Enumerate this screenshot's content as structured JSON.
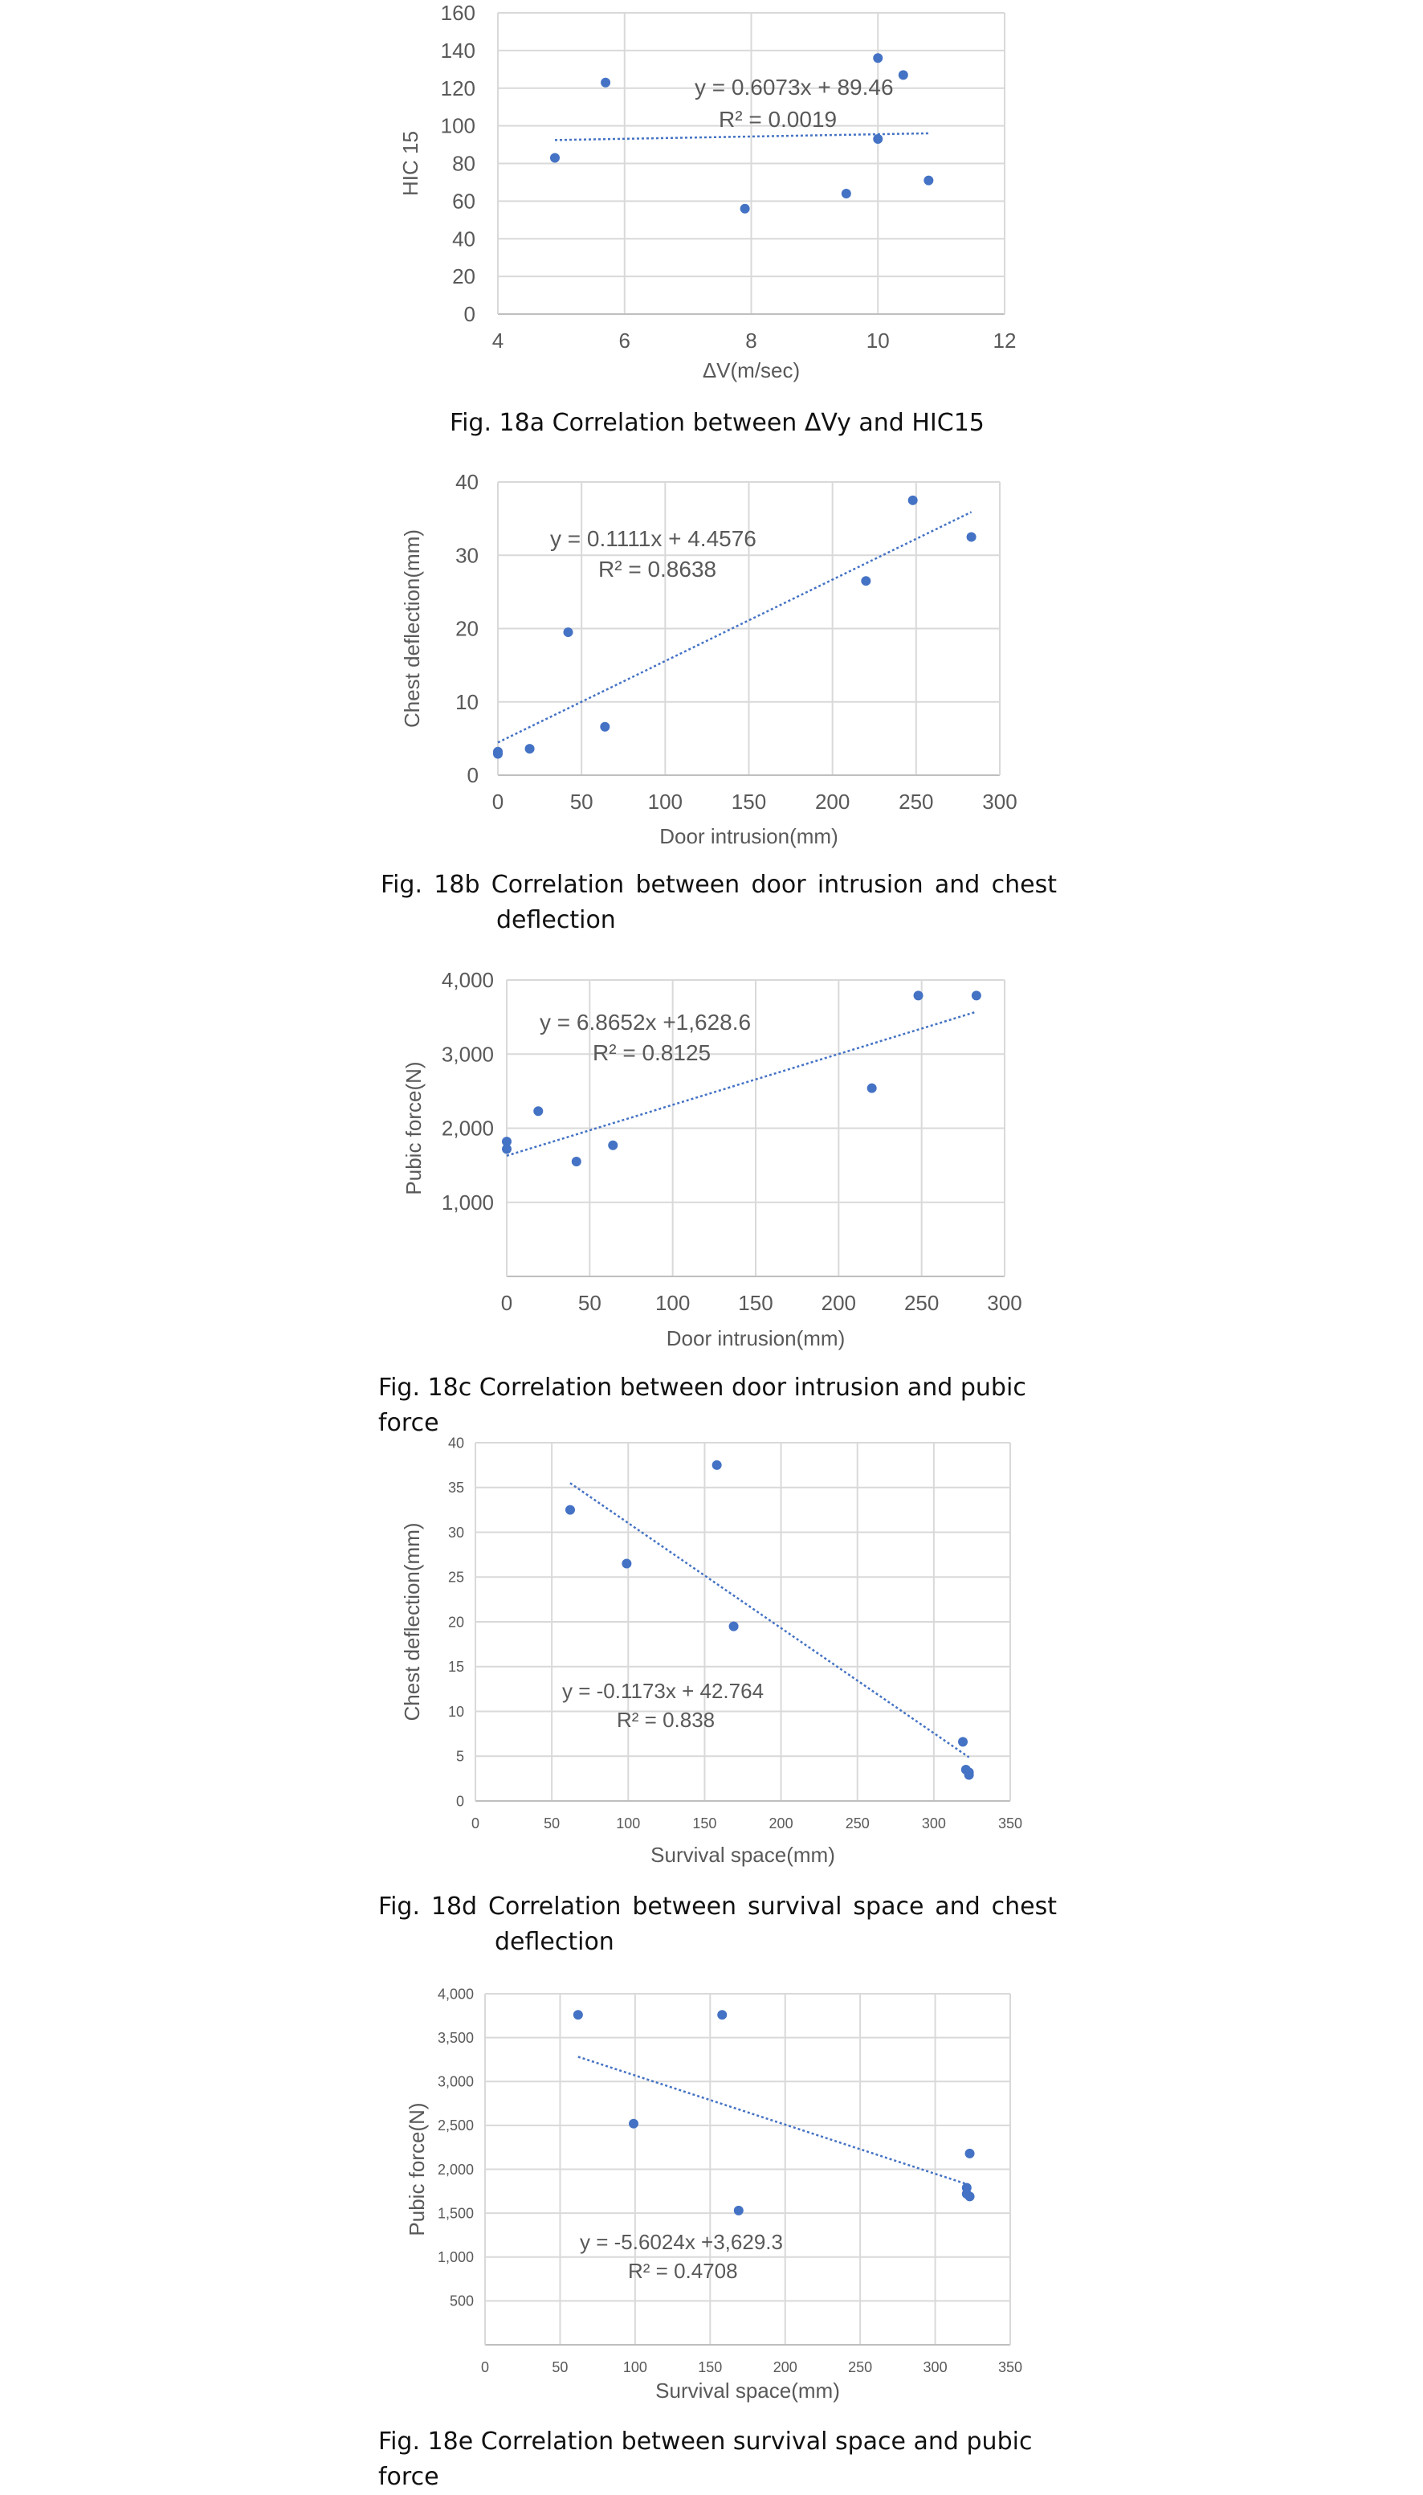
{
  "figures": [
    {
      "id": "18a",
      "caption_main": "Fig. 18a Correlation between ΔVy and HIC15",
      "caption_cont": "",
      "chart_data": {
        "type": "scatter",
        "xlabel": "ΔV(m/sec)",
        "ylabel": "HIC 15",
        "xlim": [
          4,
          12
        ],
        "ylim": [
          0,
          160
        ],
        "xticks": [
          4,
          6,
          8,
          10,
          12
        ],
        "yticks": [
          0,
          20,
          40,
          60,
          80,
          100,
          120,
          140,
          160
        ],
        "tick_labels_x": [
          "4",
          "6",
          "8",
          "10",
          "12"
        ],
        "tick_labels_y": [
          "0",
          "20",
          "40",
          "60",
          "80",
          "100",
          "120",
          "140",
          "160"
        ],
        "grid": "horizontal",
        "points": [
          [
            4.9,
            83
          ],
          [
            5.7,
            123
          ],
          [
            7.9,
            56
          ],
          [
            9.5,
            64
          ],
          [
            10.0,
            136
          ],
          [
            10.0,
            93
          ],
          [
            10.4,
            127
          ],
          [
            10.8,
            71
          ]
        ],
        "trendline": {
          "slope": 0.6073,
          "intercept": 89.46,
          "x_range": [
            4.9,
            10.8
          ]
        },
        "equation": "y = 0.6073x + 89.46",
        "r2": "R² = 0.0019",
        "color": "#4472C4"
      }
    },
    {
      "id": "18b",
      "caption_main": "Fig. 18b Correlation between door intrusion and chest",
      "caption_cont": "deflection",
      "chart_data": {
        "type": "scatter",
        "xlabel": "Door intrusion(mm)",
        "ylabel": "Chest deflection(mm)",
        "xlim": [
          0,
          300
        ],
        "ylim": [
          0,
          40
        ],
        "xticks": [
          0,
          50,
          100,
          150,
          200,
          250,
          300
        ],
        "yticks": [
          0,
          10,
          20,
          30,
          40
        ],
        "tick_labels_x": [
          "0",
          "50",
          "100",
          "150",
          "200",
          "250",
          "300"
        ],
        "tick_labels_y": [
          "0",
          "10",
          "20",
          "30",
          "40"
        ],
        "grid": "both",
        "points": [
          [
            0,
            3.2
          ],
          [
            0,
            2.9
          ],
          [
            19,
            3.6
          ],
          [
            42,
            19.5
          ],
          [
            64,
            6.6
          ],
          [
            220,
            26.5
          ],
          [
            248,
            37.5
          ],
          [
            283,
            32.5
          ]
        ],
        "trendline": {
          "slope": 0.1111,
          "intercept": 4.4576,
          "x_range": [
            0,
            283
          ]
        },
        "equation": "y = 0.1111x + 4.4576",
        "r2": "R² = 0.8638",
        "color": "#4472C4"
      }
    },
    {
      "id": "18c",
      "caption_main": "Fig. 18c Correlation between door intrusion and pubic force",
      "caption_cont": "",
      "chart_data": {
        "type": "scatter",
        "xlabel": "Door intrusion(mm)",
        "ylabel": "Pubic force(N)",
        "xlim": [
          0,
          300
        ],
        "ylim": [
          0,
          4000
        ],
        "xticks": [
          0,
          50,
          100,
          150,
          200,
          250,
          300
        ],
        "yticks": [
          1000,
          2000,
          3000,
          4000
        ],
        "tick_labels_x": [
          "0",
          "50",
          "100",
          "150",
          "200",
          "250",
          "300"
        ],
        "tick_labels_y": [
          "1,000",
          "2,000",
          "3,000",
          "4,000"
        ],
        "grid": "both",
        "points": [
          [
            0,
            1820
          ],
          [
            0,
            1720
          ],
          [
            19,
            2230
          ],
          [
            42,
            1550
          ],
          [
            64,
            1770
          ],
          [
            220,
            2540
          ],
          [
            248,
            3790
          ],
          [
            283,
            3790
          ]
        ],
        "trendline": {
          "slope": 6.8652,
          "intercept": 1628.6,
          "x_range": [
            0,
            283
          ]
        },
        "equation": "y = 6.8652x +1,628.6",
        "r2": "R² = 0.8125",
        "color": "#4472C4"
      }
    },
    {
      "id": "18d",
      "caption_main": "Fig. 18d Correlation between survival space and chest",
      "caption_cont": "deflection",
      "chart_data": {
        "type": "scatter",
        "xlabel": "Survival space(mm)",
        "ylabel": "Chest deflection(mm)",
        "xlim": [
          0,
          350
        ],
        "ylim": [
          0,
          40
        ],
        "xticks": [
          0,
          50,
          100,
          150,
          200,
          250,
          300,
          350
        ],
        "yticks": [
          0,
          5,
          10,
          15,
          20,
          25,
          30,
          35,
          40
        ],
        "tick_labels_x": [
          "0",
          "50",
          "100",
          "150",
          "200",
          "250",
          "300",
          "350"
        ],
        "tick_labels_y": [
          "0",
          "5",
          "10",
          "15",
          "20",
          "25",
          "30",
          "35",
          "40"
        ],
        "grid": "both",
        "points": [
          [
            62,
            32.5
          ],
          [
            99,
            26.5
          ],
          [
            158,
            37.5
          ],
          [
            169,
            19.5
          ],
          [
            319,
            6.6
          ],
          [
            321,
            3.5
          ],
          [
            323,
            3.2
          ],
          [
            323,
            2.9
          ]
        ],
        "trendline": {
          "slope": -0.1173,
          "intercept": 42.764,
          "x_range": [
            62,
            323
          ]
        },
        "equation": "y = -0.1173x + 42.764",
        "r2": "R² = 0.838",
        "color": "#4472C4"
      }
    },
    {
      "id": "18e",
      "caption_main": "Fig. 18e Correlation between survival space and pubic force",
      "caption_cont": "",
      "chart_data": {
        "type": "scatter",
        "xlabel": "Survival space(mm)",
        "ylabel": "Pubic force(N)",
        "xlim": [
          0,
          350
        ],
        "ylim": [
          0,
          4000
        ],
        "xticks": [
          0,
          50,
          100,
          150,
          200,
          250,
          300,
          350
        ],
        "yticks": [
          500,
          1000,
          1500,
          2000,
          2500,
          3000,
          3500,
          4000
        ],
        "tick_labels_x": [
          "0",
          "50",
          "100",
          "150",
          "200",
          "250",
          "300",
          "350"
        ],
        "tick_labels_y": [
          "500",
          "1,000",
          "1,500",
          "2,000",
          "2,500",
          "3,000",
          "3,500",
          "4,000"
        ],
        "grid": "both",
        "points": [
          [
            62,
            3760
          ],
          [
            99,
            2520
          ],
          [
            158,
            3760
          ],
          [
            169,
            1530
          ],
          [
            321,
            1790
          ],
          [
            321,
            1720
          ],
          [
            323,
            2180
          ],
          [
            323,
            1690
          ]
        ],
        "trendline": {
          "slope": -5.6024,
          "intercept": 3629.3,
          "x_range": [
            62,
            323
          ]
        },
        "equation": "y = -5.6024x +3,629.3",
        "r2": "R² = 0.4708",
        "color": "#4472C4"
      }
    }
  ]
}
